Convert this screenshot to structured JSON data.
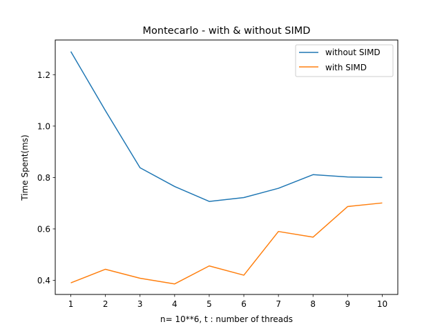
{
  "chart_data": {
    "type": "line",
    "title": "Montecarlo - with & without SIMD",
    "xlabel": "n= 10**6, t : number of threads",
    "ylabel": "Time Spent(ms)",
    "x": [
      1,
      2,
      3,
      4,
      5,
      6,
      7,
      8,
      9,
      10
    ],
    "xticks": [
      "1",
      "2",
      "3",
      "4",
      "5",
      "6",
      "7",
      "8",
      "9",
      "10"
    ],
    "yticks": [
      0.4,
      0.6,
      0.8,
      1.0,
      1.2
    ],
    "ytick_labels": [
      "0.4",
      "0.6",
      "0.8",
      "1.0",
      "1.2"
    ],
    "xlim": [
      0.55,
      10.45
    ],
    "ylim": [
      0.345,
      1.335
    ],
    "grid": false,
    "legend_position": "top-right",
    "series": [
      {
        "name": "without SIMD",
        "color": "#1f77b4",
        "values": [
          1.29,
          1.06,
          0.838,
          0.765,
          0.707,
          0.722,
          0.758,
          0.811,
          0.802,
          0.8
        ]
      },
      {
        "name": "with SIMD",
        "color": "#ff7f0e",
        "values": [
          0.39,
          0.443,
          0.408,
          0.386,
          0.456,
          0.42,
          0.59,
          0.568,
          0.687,
          0.701
        ]
      }
    ]
  }
}
